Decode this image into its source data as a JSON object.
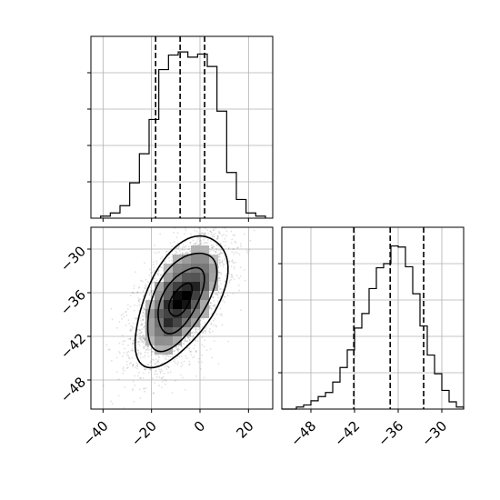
{
  "chart_data": {
    "type": "corner",
    "grid": true,
    "colors": {
      "line": "#000000",
      "grid": "#b0b0b0",
      "background": "#ffffff"
    },
    "parameters": [
      {
        "range": [
          -45,
          30
        ],
        "ticks": [
          -40,
          -20,
          0,
          20
        ],
        "tick_labels": [
          "−40",
          "−20",
          "0",
          "20"
        ]
      },
      {
        "range": [
          -52,
          -27
        ],
        "ticks": [
          -48,
          -42,
          -36,
          -30
        ],
        "tick_labels": [
          "−48",
          "−42",
          "−36",
          "−30"
        ]
      }
    ],
    "histograms": [
      {
        "param": 0,
        "ylim": [
          0,
          0.175
        ],
        "bin_edges": [
          -41,
          -37,
          -33,
          -29,
          -25,
          -21,
          -17,
          -13,
          -9,
          -5,
          -1,
          3,
          7,
          11,
          15,
          19,
          23,
          27
        ],
        "density": [
          0.002,
          0.005,
          0.012,
          0.034,
          0.062,
          0.095,
          0.143,
          0.157,
          0.16,
          0.155,
          0.158,
          0.146,
          0.103,
          0.044,
          0.018,
          0.005,
          0.002
        ],
        "quantiles": [
          -18.3,
          -8.2,
          1.9
        ]
      },
      {
        "param": 1,
        "ylim": [
          0,
          0.175
        ],
        "bin_edges": [
          -52,
          -51,
          -50,
          -49,
          -48,
          -47,
          -46,
          -45,
          -44,
          -43,
          -42,
          -41,
          -40,
          -39,
          -38,
          -37,
          -36,
          -35,
          -34,
          -33,
          -32,
          -31,
          -30,
          -29,
          -28,
          -27
        ],
        "density": [
          0.0,
          0.0,
          0.002,
          0.004,
          0.008,
          0.012,
          0.016,
          0.026,
          0.04,
          0.057,
          0.078,
          0.092,
          0.116,
          0.136,
          0.14,
          0.157,
          0.156,
          0.137,
          0.111,
          0.08,
          0.052,
          0.034,
          0.018,
          0.007,
          0.002
        ],
        "quantiles": [
          -42.1,
          -37.1,
          -32.5
        ]
      }
    ],
    "joint": {
      "x_param": 0,
      "y_param": 1,
      "mean": [
        -8,
        -37
      ],
      "std": [
        9.5,
        4.5
      ],
      "correlation": 0.55,
      "n_samples": 3500
    }
  }
}
